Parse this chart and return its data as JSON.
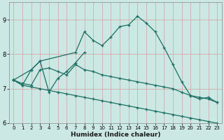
{
  "xlabel": "Humidex (Indice chaleur)",
  "xlim": [
    -0.5,
    23.5
  ],
  "ylim": [
    6.0,
    9.5
  ],
  "yticks": [
    6,
    7,
    8,
    9
  ],
  "xticks": [
    0,
    1,
    2,
    3,
    4,
    5,
    6,
    7,
    8,
    9,
    10,
    11,
    12,
    13,
    14,
    15,
    16,
    17,
    18,
    19,
    20,
    21,
    22,
    23
  ],
  "bg_color": "#cce8e4",
  "grid_color": "#aacfca",
  "line_color": "#1a6e62",
  "lines": [
    {
      "x": [
        0,
        2,
        3,
        7,
        8,
        9,
        10,
        11,
        12,
        13,
        14,
        15,
        16,
        17,
        18,
        19,
        20,
        21,
        22,
        23
      ],
      "y": [
        7.25,
        7.55,
        7.8,
        8.05,
        8.65,
        8.4,
        8.25,
        8.5,
        8.8,
        8.85,
        9.1,
        8.9,
        8.65,
        8.2,
        7.7,
        7.2,
        6.8,
        6.7,
        6.75,
        6.6
      ]
    },
    {
      "x": [
        0,
        1,
        2,
        3,
        4,
        5,
        6,
        7,
        8
      ],
      "y": [
        7.25,
        7.1,
        7.55,
        7.8,
        6.9,
        7.3,
        7.5,
        7.75,
        8.05
      ]
    },
    {
      "x": [
        0,
        1,
        2,
        3,
        4,
        5,
        6,
        7,
        8,
        9,
        10,
        11,
        12,
        13,
        14,
        15,
        16,
        17,
        18,
        19,
        20,
        21,
        22,
        23
      ],
      "y": [
        7.25,
        7.15,
        7.1,
        7.55,
        7.6,
        7.5,
        7.4,
        7.7,
        7.55,
        7.5,
        7.4,
        7.35,
        7.3,
        7.25,
        7.2,
        7.15,
        7.1,
        7.05,
        7.0,
        6.9,
        6.8,
        6.75,
        6.7,
        6.6
      ]
    },
    {
      "x": [
        0,
        1,
        2,
        3,
        4,
        5,
        6,
        7,
        8,
        9,
        10,
        11,
        12,
        13,
        14,
        15,
        16,
        17,
        18,
        19,
        20,
        21,
        22,
        23
      ],
      "y": [
        7.25,
        7.1,
        7.05,
        7.0,
        6.95,
        6.9,
        6.85,
        6.8,
        6.75,
        6.7,
        6.65,
        6.6,
        6.55,
        6.5,
        6.45,
        6.4,
        6.35,
        6.3,
        6.25,
        6.2,
        6.15,
        6.1,
        6.05,
        6.0
      ]
    }
  ]
}
